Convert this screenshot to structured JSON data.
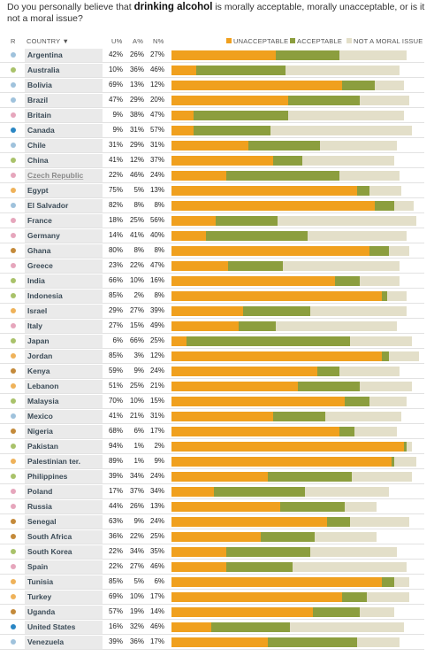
{
  "title": {
    "prefix": "Do you personally believe that ",
    "highlight": "drinking alcohol",
    "suffix": " is morally acceptable, morally unacceptable, or is it not a moral issue?"
  },
  "header": {
    "region": "R",
    "country": "COUNTRY ▼",
    "unacceptable_pct": "U%",
    "acceptable_pct": "A%",
    "not_moral_pct": "N%",
    "legend_unacceptable": "UNACCEPTABLE",
    "legend_acceptable": "ACCEPTABLE",
    "legend_not_moral": "NOT A MORAL ISSUE"
  },
  "colors": {
    "unacceptable": "#f0a01e",
    "acceptable": "#8c9e3e",
    "not_moral": "#e3dfc9",
    "region_americas_latin": "#a9c26a",
    "region_asia_pacific": "#9fc2dc",
    "region_europe": "#e6a6bc",
    "region_north_america": "#2a86c4",
    "region_middle_east": "#efb25a",
    "region_africa": "#c48a3a",
    "region_latin_america": "#b6cf7a"
  },
  "chart_data": {
    "type": "bar",
    "stacked": true,
    "orientation": "horizontal",
    "title": "Do you personally believe that drinking alcohol is morally acceptable, morally unacceptable, or is it not a moral issue?",
    "series_names": [
      "UNACCEPTABLE",
      "ACCEPTABLE",
      "NOT A MORAL ISSUE"
    ],
    "rows": [
      {
        "country": "Argentina",
        "region_color": "#9fc2dc",
        "u": 42,
        "a": 26,
        "n": 27
      },
      {
        "country": "Australia",
        "region_color": "#a9c26a",
        "u": 10,
        "a": 36,
        "n": 46
      },
      {
        "country": "Bolivia",
        "region_color": "#9fc2dc",
        "u": 69,
        "a": 13,
        "n": 12
      },
      {
        "country": "Brazil",
        "region_color": "#9fc2dc",
        "u": 47,
        "a": 29,
        "n": 20
      },
      {
        "country": "Britain",
        "region_color": "#e6a6bc",
        "u": 9,
        "a": 38,
        "n": 47
      },
      {
        "country": "Canada",
        "region_color": "#2a86c4",
        "u": 9,
        "a": 31,
        "n": 57
      },
      {
        "country": "Chile",
        "region_color": "#9fc2dc",
        "u": 31,
        "a": 29,
        "n": 31
      },
      {
        "country": "China",
        "region_color": "#a9c26a",
        "u": 41,
        "a": 12,
        "n": 37
      },
      {
        "country": "Czech Republic",
        "region_color": "#e6a6bc",
        "u": 22,
        "a": 46,
        "n": 24,
        "muted": true
      },
      {
        "country": "Egypt",
        "region_color": "#efb25a",
        "u": 75,
        "a": 5,
        "n": 13
      },
      {
        "country": "El Salvador",
        "region_color": "#9fc2dc",
        "u": 82,
        "a": 8,
        "n": 8
      },
      {
        "country": "France",
        "region_color": "#e6a6bc",
        "u": 18,
        "a": 25,
        "n": 56
      },
      {
        "country": "Germany",
        "region_color": "#e6a6bc",
        "u": 14,
        "a": 41,
        "n": 40
      },
      {
        "country": "Ghana",
        "region_color": "#c48a3a",
        "u": 80,
        "a": 8,
        "n": 8
      },
      {
        "country": "Greece",
        "region_color": "#e6a6bc",
        "u": 23,
        "a": 22,
        "n": 47
      },
      {
        "country": "India",
        "region_color": "#a9c26a",
        "u": 66,
        "a": 10,
        "n": 16
      },
      {
        "country": "Indonesia",
        "region_color": "#a9c26a",
        "u": 85,
        "a": 2,
        "n": 8
      },
      {
        "country": "Israel",
        "region_color": "#efb25a",
        "u": 29,
        "a": 27,
        "n": 39
      },
      {
        "country": "Italy",
        "region_color": "#e6a6bc",
        "u": 27,
        "a": 15,
        "n": 49
      },
      {
        "country": "Japan",
        "region_color": "#a9c26a",
        "u": 6,
        "a": 66,
        "n": 25
      },
      {
        "country": "Jordan",
        "region_color": "#efb25a",
        "u": 85,
        "a": 3,
        "n": 12
      },
      {
        "country": "Kenya",
        "region_color": "#c48a3a",
        "u": 59,
        "a": 9,
        "n": 24
      },
      {
        "country": "Lebanon",
        "region_color": "#efb25a",
        "u": 51,
        "a": 25,
        "n": 21
      },
      {
        "country": "Malaysia",
        "region_color": "#a9c26a",
        "u": 70,
        "a": 10,
        "n": 15
      },
      {
        "country": "Mexico",
        "region_color": "#9fc2dc",
        "u": 41,
        "a": 21,
        "n": 31
      },
      {
        "country": "Nigeria",
        "region_color": "#c48a3a",
        "u": 68,
        "a": 6,
        "n": 17
      },
      {
        "country": "Pakistan",
        "region_color": "#a9c26a",
        "u": 94,
        "a": 1,
        "n": 2
      },
      {
        "country": "Palestinian ter.",
        "region_color": "#efb25a",
        "u": 89,
        "a": 1,
        "n": 9
      },
      {
        "country": "Philippines",
        "region_color": "#a9c26a",
        "u": 39,
        "a": 34,
        "n": 24
      },
      {
        "country": "Poland",
        "region_color": "#e6a6bc",
        "u": 17,
        "a": 37,
        "n": 34
      },
      {
        "country": "Russia",
        "region_color": "#e6a6bc",
        "u": 44,
        "a": 26,
        "n": 13
      },
      {
        "country": "Senegal",
        "region_color": "#c48a3a",
        "u": 63,
        "a": 9,
        "n": 24
      },
      {
        "country": "South Africa",
        "region_color": "#c48a3a",
        "u": 36,
        "a": 22,
        "n": 25
      },
      {
        "country": "South Korea",
        "region_color": "#a9c26a",
        "u": 22,
        "a": 34,
        "n": 35
      },
      {
        "country": "Spain",
        "region_color": "#e6a6bc",
        "u": 22,
        "a": 27,
        "n": 46
      },
      {
        "country": "Tunisia",
        "region_color": "#efb25a",
        "u": 85,
        "a": 5,
        "n": 6
      },
      {
        "country": "Turkey",
        "region_color": "#efb25a",
        "u": 69,
        "a": 10,
        "n": 17
      },
      {
        "country": "Uganda",
        "region_color": "#c48a3a",
        "u": 57,
        "a": 19,
        "n": 14
      },
      {
        "country": "United States",
        "region_color": "#2a86c4",
        "u": 16,
        "a": 32,
        "n": 46
      },
      {
        "country": "Venezuela",
        "region_color": "#9fc2dc",
        "u": 39,
        "a": 36,
        "n": 17
      }
    ]
  }
}
